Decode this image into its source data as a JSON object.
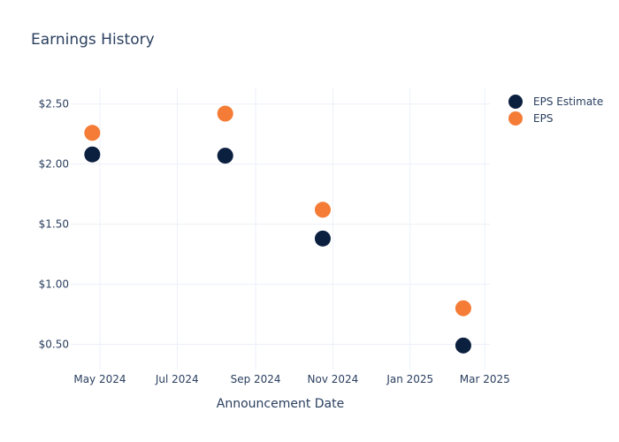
{
  "chart_data": {
    "type": "scatter",
    "title": "Earnings History",
    "xlabel": "Announcement Date",
    "ylabel": "",
    "x_ticks": [
      {
        "date": "2024-05-01",
        "label": "May 2024"
      },
      {
        "date": "2024-07-01",
        "label": "Jul 2024"
      },
      {
        "date": "2024-09-01",
        "label": "Sep 2024"
      },
      {
        "date": "2024-11-01",
        "label": "Nov 2024"
      },
      {
        "date": "2025-01-01",
        "label": "Jan 2025"
      },
      {
        "date": "2025-03-01",
        "label": "Mar 2025"
      }
    ],
    "y_ticks": [
      {
        "value": 0.5,
        "label": "$0.50"
      },
      {
        "value": 1.0,
        "label": "$1.00"
      },
      {
        "value": 1.5,
        "label": "$1.50"
      },
      {
        "value": 2.0,
        "label": "$2.00"
      },
      {
        "value": 2.5,
        "label": "$2.50"
      }
    ],
    "xlim": [
      "2024-04-08",
      "2025-03-05"
    ],
    "ylim": [
      0.29,
      2.63
    ],
    "grid": true,
    "legend_position": "top-right",
    "series": [
      {
        "name": "EPS Estimate",
        "color": "#0b1f3f",
        "x": [
          "2024-04-25",
          "2024-08-08",
          "2024-10-24",
          "2025-02-12"
        ],
        "y": [
          2.08,
          2.07,
          1.38,
          0.49
        ]
      },
      {
        "name": "EPS",
        "color": "#f47c36",
        "x": [
          "2024-04-25",
          "2024-08-08",
          "2024-10-24",
          "2025-02-12"
        ],
        "y": [
          2.26,
          2.42,
          1.62,
          0.8
        ]
      }
    ]
  }
}
